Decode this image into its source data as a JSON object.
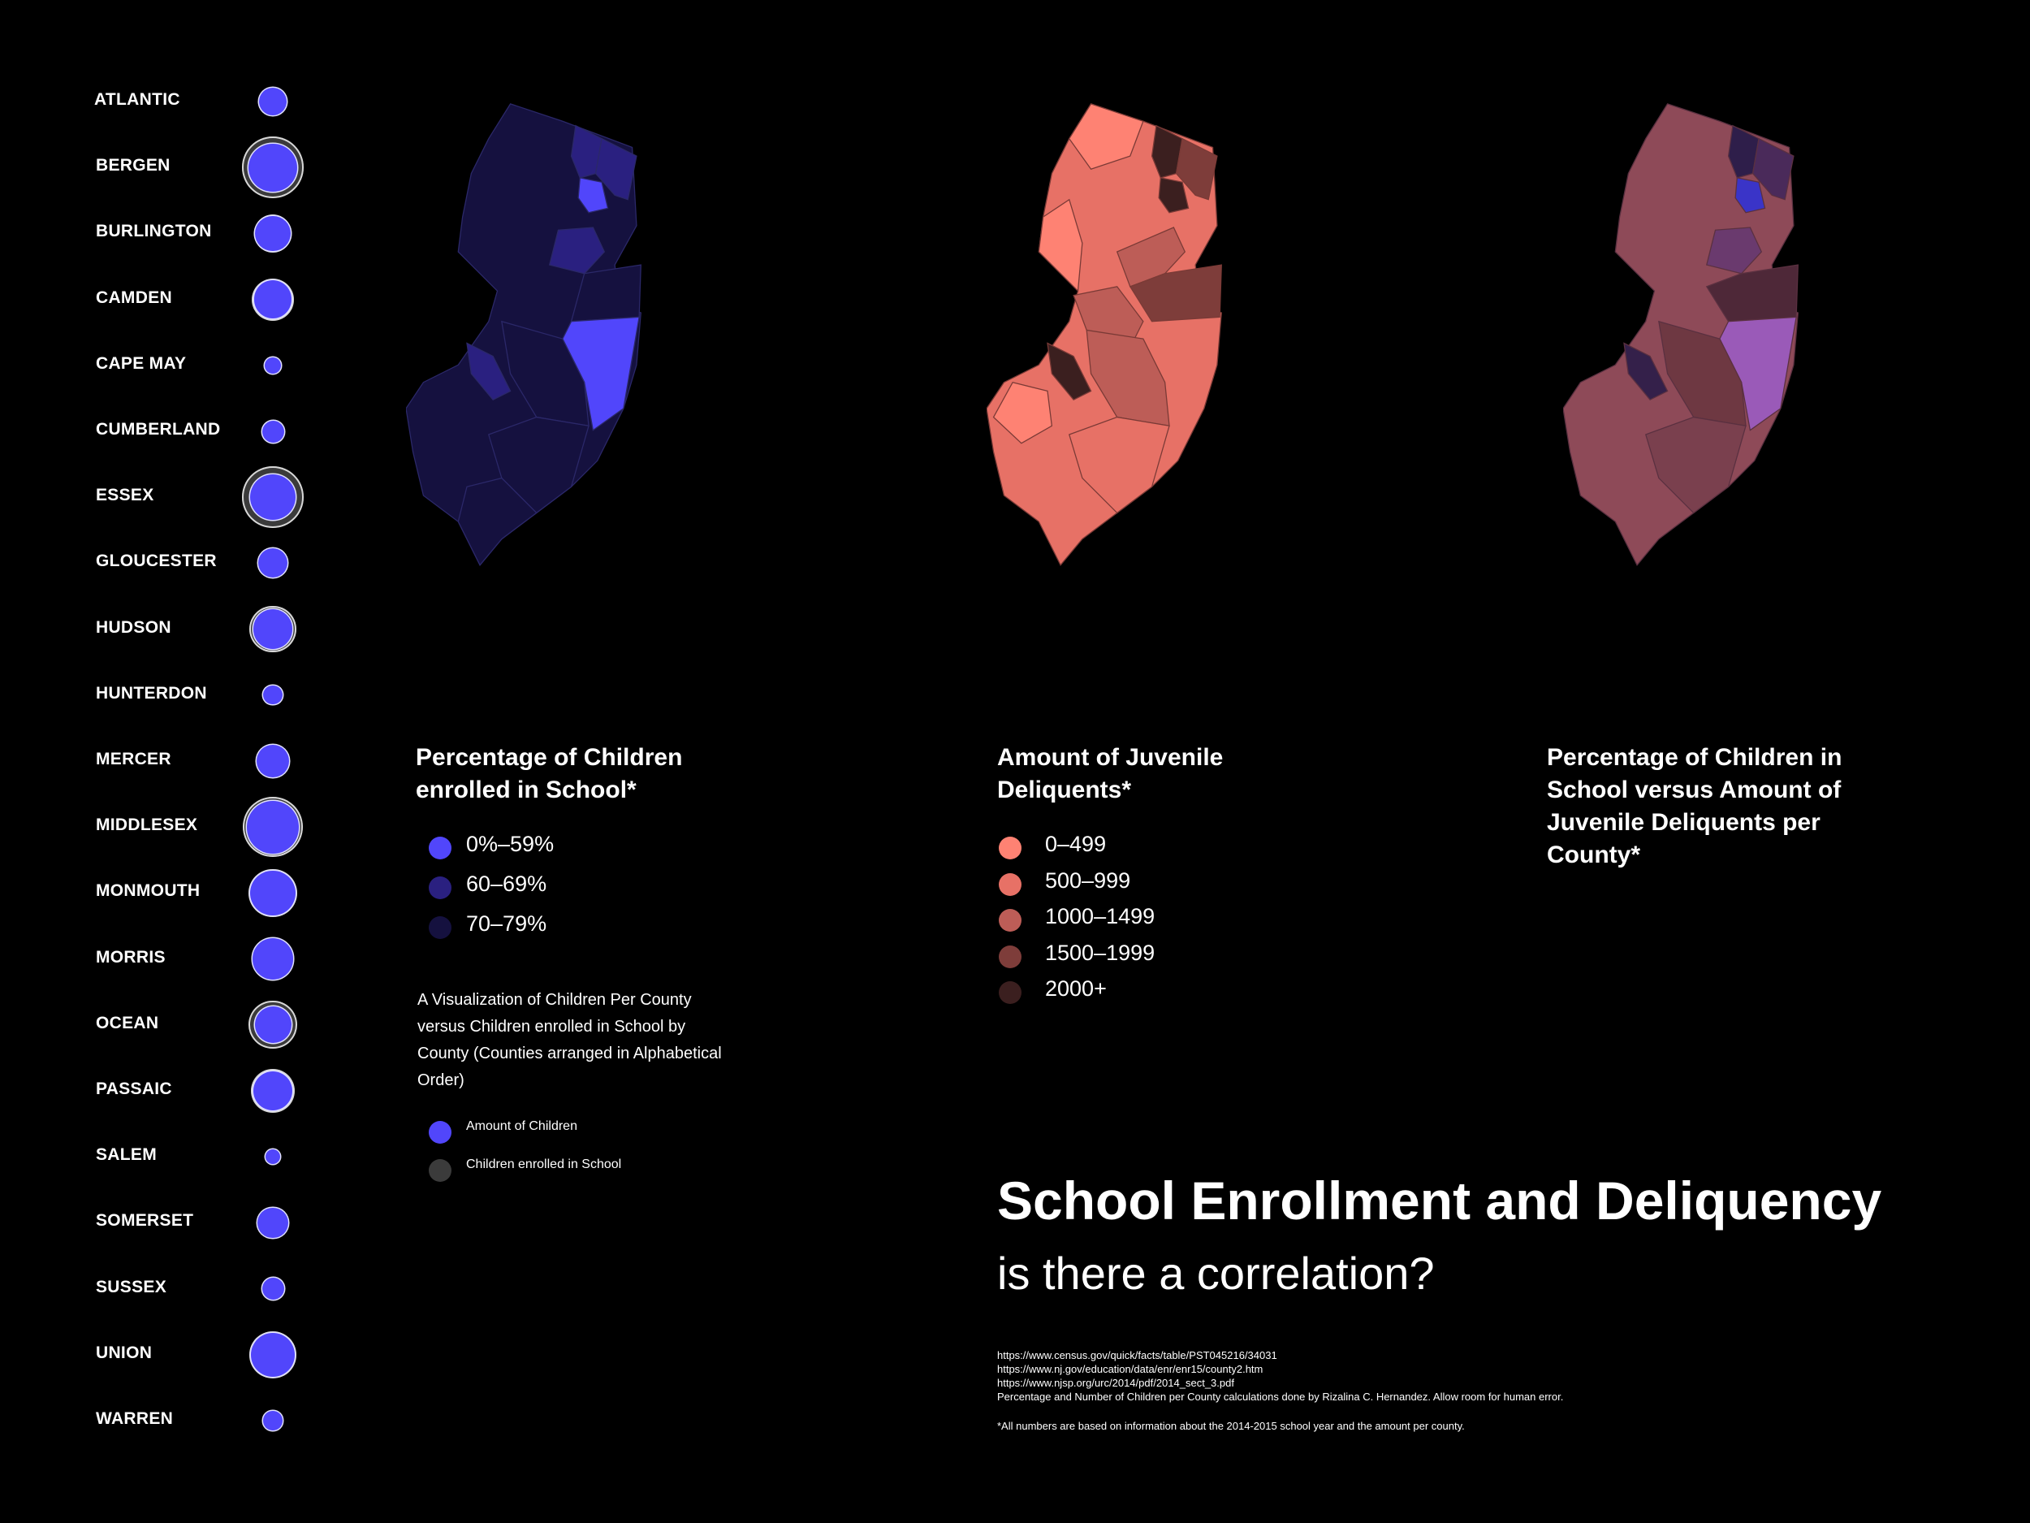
{
  "counties": [
    {
      "name": "ATLANTIC",
      "children_scale": 0.95,
      "enrolled_scale": 0
    },
    {
      "name": "BERGEN",
      "children_scale": 1.65,
      "enrolled_scale": 2.1
    },
    {
      "name": "BURLINGTON",
      "children_scale": 1.2,
      "enrolled_scale": 1.3
    },
    {
      "name": "CAMDEN",
      "children_scale": 1.3,
      "enrolled_scale": 1.45
    },
    {
      "name": "CAPE MAY",
      "children_scale": 0.55,
      "enrolled_scale": 0
    },
    {
      "name": "CUMBERLAND",
      "children_scale": 0.75,
      "enrolled_scale": 0
    },
    {
      "name": "ESSEX",
      "children_scale": 1.55,
      "enrolled_scale": 2.1
    },
    {
      "name": "GLOUCESTER",
      "children_scale": 1.0,
      "enrolled_scale": 0
    },
    {
      "name": "HUDSON",
      "children_scale": 1.35,
      "enrolled_scale": 1.6
    },
    {
      "name": "HUNTERDON",
      "children_scale": 0.65,
      "enrolled_scale": 0
    },
    {
      "name": "MERCER",
      "children_scale": 1.1,
      "enrolled_scale": 1.15
    },
    {
      "name": "MIDDLESEX",
      "children_scale": 1.8,
      "enrolled_scale": 2.05
    },
    {
      "name": "MONMOUTH",
      "children_scale": 1.55,
      "enrolled_scale": 1.65
    },
    {
      "name": "MORRIS",
      "children_scale": 1.4,
      "enrolled_scale": 1.45
    },
    {
      "name": "OCEAN",
      "children_scale": 1.25,
      "enrolled_scale": 1.65
    },
    {
      "name": "PASSAIC",
      "children_scale": 1.35,
      "enrolled_scale": 1.5
    },
    {
      "name": "SALEM",
      "children_scale": 0.5,
      "enrolled_scale": 0
    },
    {
      "name": "SOMERSET",
      "children_scale": 1.05,
      "enrolled_scale": 1.1
    },
    {
      "name": "SUSSEX",
      "children_scale": 0.75,
      "enrolled_scale": 0
    },
    {
      "name": "UNION",
      "children_scale": 1.5,
      "enrolled_scale": 1.6
    },
    {
      "name": "WARREN",
      "children_scale": 0.65,
      "enrolled_scale": 0
    }
  ],
  "map1": {
    "title": "Percentage of Children enrolled in School*",
    "legend": [
      {
        "label": "0%–59%",
        "color": "#5146fb"
      },
      {
        "label": "60–69%",
        "color": "#2a2080"
      },
      {
        "label": "70–79%",
        "color": "#15113f"
      }
    ]
  },
  "map2": {
    "title": "Amount of Juvenile Deliquents*",
    "legend": [
      {
        "label": "0–499",
        "color": "#fe8273"
      },
      {
        "label": "500–999",
        "color": "#e77166"
      },
      {
        "label": "1000–1499",
        "color": "#bd5d57"
      },
      {
        "label": "1500–1999",
        "color": "#7e3d3a"
      },
      {
        "label": "2000+",
        "color": "#3b1f1f"
      }
    ]
  },
  "map3": {
    "title": "Percentage of Children in School versus Amount of Juvenile Deliquents per County*"
  },
  "description": "A Visualization of Children Per County versus Children enrolled in School by County (Counties arranged in Alphabetical Order)",
  "bubble_legend": [
    {
      "label": "Amount of Children",
      "color": "#5146fb"
    },
    {
      "label": "Children enrolled in School",
      "color": "#3b3b3b"
    }
  ],
  "main_title": "School Enrollment and Deliquency",
  "subtitle": "is there a correlation?",
  "sources": [
    "https://www.census.gov/quick/facts/table/PST045216/34031",
    "https://www.nj.gov/education/data/enr/enr15/county2.htm",
    "https://www.njsp.org/urc/2014/pdf/2014_sect_3.pdf",
    "Percentage and Number of Children per County calculations done by Rizalina C. Hernandez. Allow room for human error."
  ],
  "footnote": "*All numbers are based on information about the 2014-2015 school year and the amount per county.",
  "colors": {
    "bubble": "#5146fb",
    "bubble_ring": "#3b3b3b",
    "map1_base": "#15113f",
    "map2_base": "#e77166",
    "map3_base": "#8e4a58"
  }
}
